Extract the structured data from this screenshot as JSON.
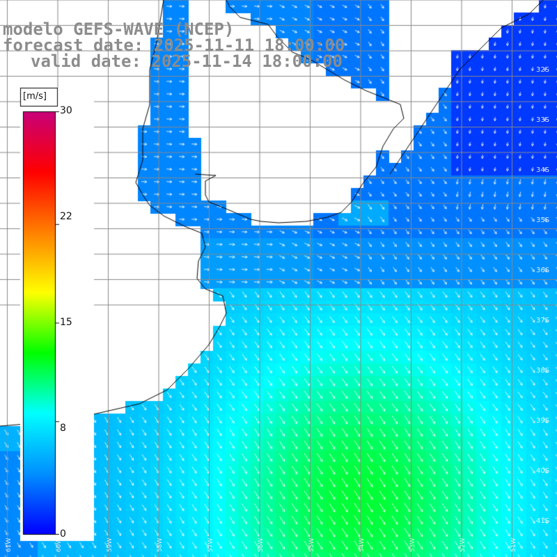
{
  "header": {
    "line1": "modelo GEFS-WAVE (NCEP)",
    "line2": "forecast date: 2025-11-11 18:00:00",
    "line3": "valid date: 2025-11-14 18:00:00"
  },
  "colorbar": {
    "unit": "[m/s]",
    "ticks": [
      "30",
      "22",
      "15",
      "8",
      "0"
    ],
    "tick_values": [
      30,
      22,
      15,
      8,
      0
    ],
    "range": [
      0,
      30
    ],
    "colors": [
      "#0000ff",
      "#0090ff",
      "#00ffff",
      "#00ff00",
      "#ffff00",
      "#ff8000",
      "#ff0000",
      "#c8007a"
    ]
  },
  "map": {
    "variable": "wind speed and direction",
    "latitude_labels": [
      "32S",
      "33S",
      "34S",
      "35S",
      "36S",
      "37S",
      "38S",
      "39S",
      "40S",
      "41S"
    ],
    "longitude_labels": [
      "61W",
      "60W",
      "59W",
      "58W",
      "57W",
      "56W",
      "55W",
      "54W",
      "53W",
      "52W",
      "51W"
    ],
    "land_color": "#ffffff",
    "grid_color": "#888888"
  }
}
